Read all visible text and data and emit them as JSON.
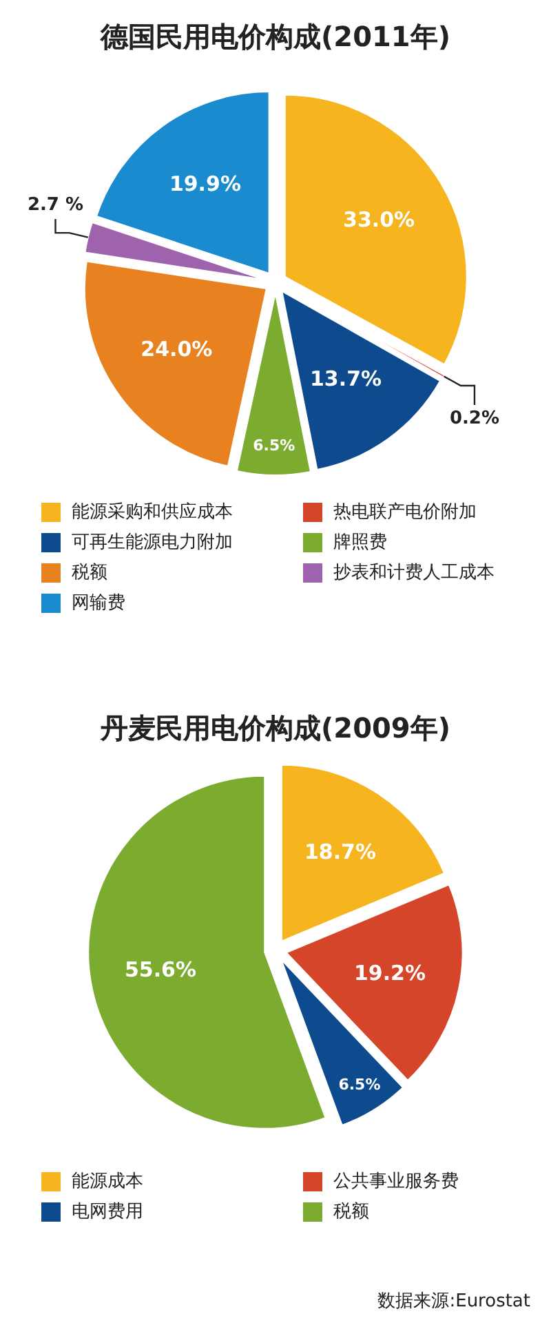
{
  "chart_data": [
    {
      "type": "pie",
      "title": "德国民用电价构成(2011年)",
      "categories": [
        "能源采购和供应成本",
        "热电联产电价附加",
        "可再生能源电力附加",
        "牌照费",
        "税额",
        "抄表和计费人工成本",
        "网输费"
      ],
      "values": [
        33.0,
        0.2,
        13.7,
        6.5,
        24.0,
        2.7,
        19.9
      ],
      "value_labels": [
        "33.0%",
        "0.2%",
        "13.7%",
        "6.5%",
        "24.0%",
        "2.7 %",
        "19.9%"
      ],
      "colors": [
        "#f6b41e",
        "#d5452a",
        "#0d4a8e",
        "#7bab2f",
        "#e8811f",
        "#9f62ad",
        "#1b8bd0"
      ],
      "legend": "bottom"
    },
    {
      "type": "pie",
      "title": "丹麦民用电价构成(2009年)",
      "categories": [
        "能源成本",
        "公共事业服务费",
        "电网费用",
        "税额"
      ],
      "values": [
        18.7,
        19.2,
        6.5,
        55.6
      ],
      "value_labels": [
        "18.7%",
        "19.2%",
        "6.5%",
        "55.6%"
      ],
      "colors": [
        "#f6b41e",
        "#d5452a",
        "#0d4a8e",
        "#7bab2f"
      ],
      "legend": "bottom",
      "annotations": [
        "数据来源:Eurostat"
      ]
    }
  ]
}
